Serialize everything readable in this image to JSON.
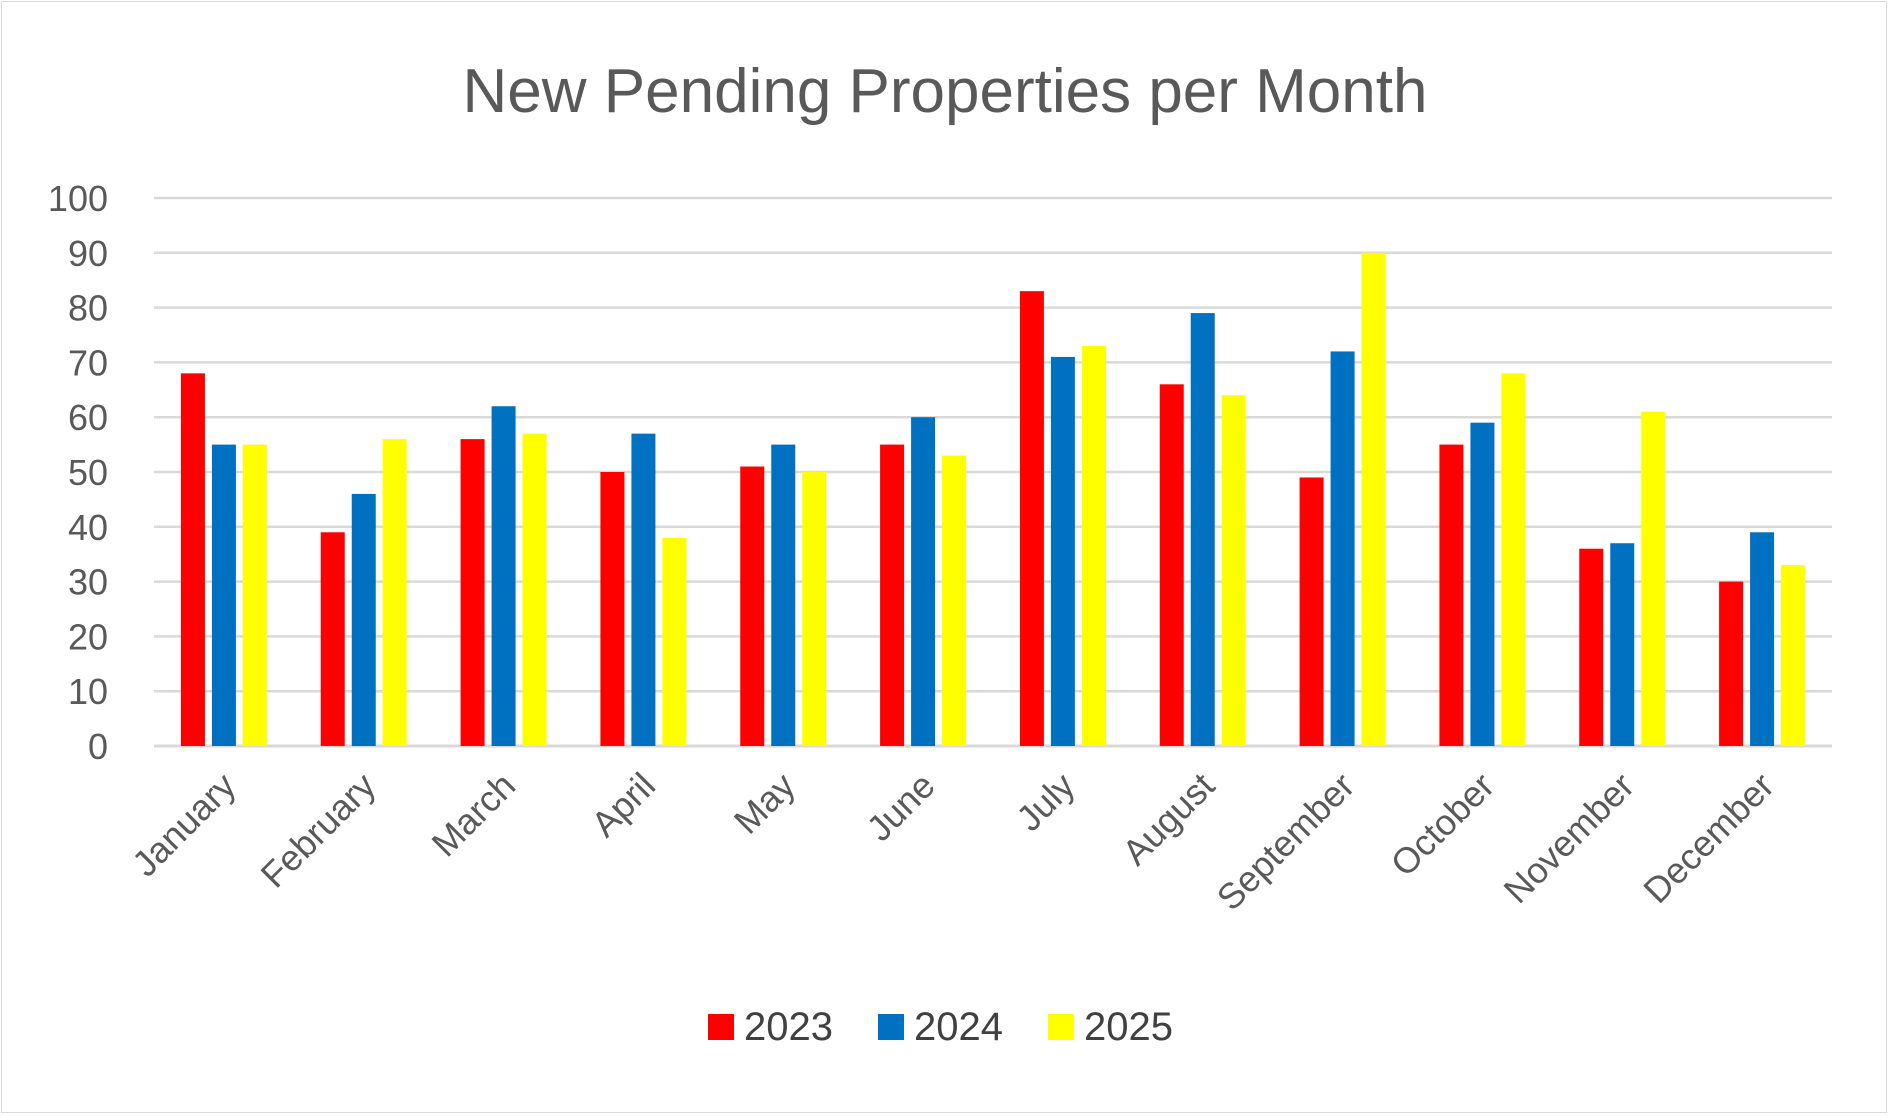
{
  "chart_data": {
    "type": "bar",
    "title": "New Pending Properties per Month",
    "xlabel": "",
    "ylabel": "",
    "ylim": [
      0,
      100
    ],
    "yticks": [
      0,
      10,
      20,
      30,
      40,
      50,
      60,
      70,
      80,
      90,
      100
    ],
    "grid": true,
    "legend_position": "bottom",
    "categories": [
      "January",
      "February",
      "March",
      "April",
      "May",
      "June",
      "July",
      "August",
      "September",
      "October",
      "November",
      "December"
    ],
    "series": [
      {
        "name": "2023",
        "color": "#ff0000",
        "values": [
          68,
          39,
          56,
          50,
          51,
          55,
          83,
          66,
          49,
          55,
          36,
          30
        ]
      },
      {
        "name": "2024",
        "color": "#0070c0",
        "values": [
          55,
          46,
          62,
          57,
          55,
          60,
          71,
          79,
          72,
          59,
          37,
          39
        ]
      },
      {
        "name": "2025",
        "color": "#ffff00",
        "values": [
          55,
          56,
          57,
          38,
          50,
          53,
          73,
          64,
          90,
          68,
          61,
          33
        ]
      }
    ]
  }
}
